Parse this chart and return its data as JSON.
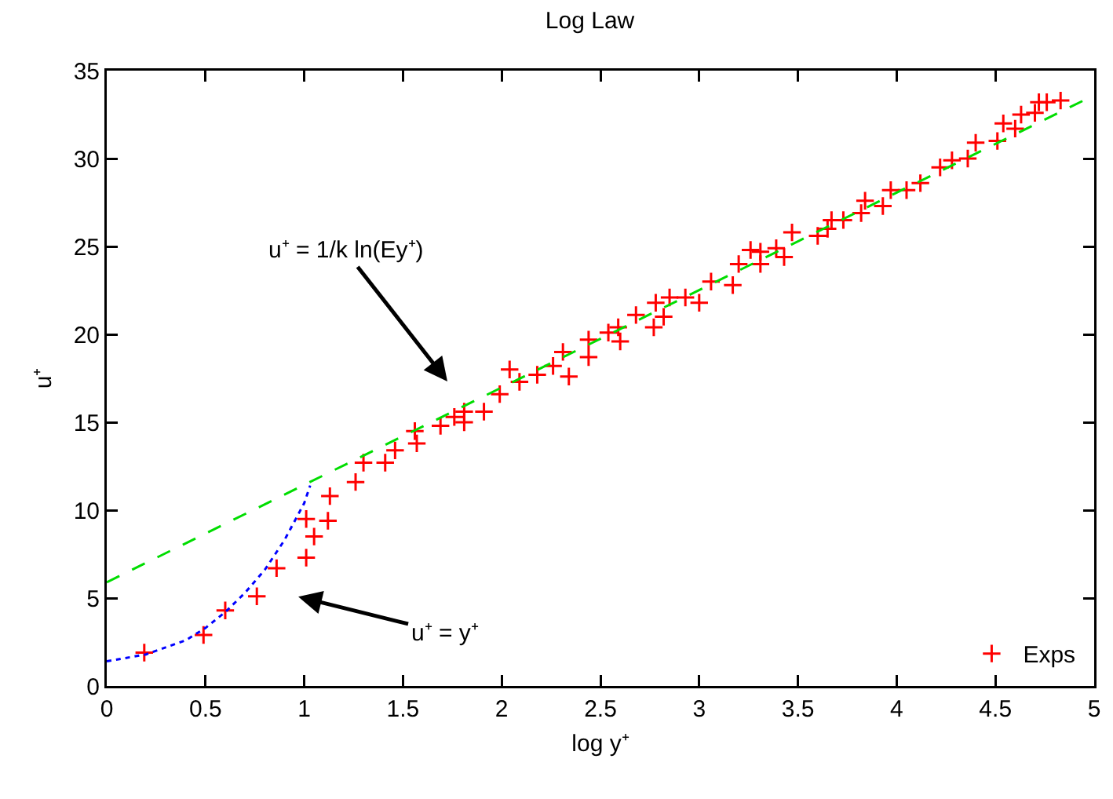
{
  "chart_data": {
    "type": "scatter",
    "title": "Log Law",
    "xlabel": "log y⁺",
    "ylabel": "u⁺",
    "xlim": [
      0,
      5
    ],
    "xticks": [
      0,
      0.5,
      1,
      1.5,
      2,
      2.5,
      3,
      3.5,
      4,
      4.5,
      5
    ],
    "ylim": [
      0,
      35
    ],
    "yticks": [
      0,
      5,
      10,
      15,
      20,
      25,
      30,
      35
    ],
    "grid": false,
    "legend": "bottom right",
    "annotations": [
      "u⁺ = 1/k ln(Ey⁺)",
      "u⁺ = y⁺"
    ],
    "series": [
      {
        "name": "Exps",
        "marker": "cross",
        "color": "#ff0000",
        "x": [
          0.19,
          0.49,
          0.6,
          0.76,
          0.86,
          1.01,
          1.01,
          1.05,
          1.12,
          1.13,
          1.26,
          1.3,
          1.41,
          1.46,
          1.56,
          1.57,
          1.69,
          1.76,
          1.81,
          1.81,
          1.91,
          1.99,
          2.04,
          2.09,
          2.18,
          2.26,
          2.31,
          2.34,
          2.44,
          2.44,
          2.54,
          2.59,
          2.6,
          2.68,
          2.77,
          2.78,
          2.82,
          2.85,
          2.93,
          3.0,
          3.06,
          3.17,
          3.2,
          3.26,
          3.31,
          3.31,
          3.39,
          3.43,
          3.47,
          3.6,
          3.65,
          3.67,
          3.73,
          3.82,
          3.84,
          3.93,
          3.97,
          4.05,
          4.12,
          4.22,
          4.28,
          4.36,
          4.4,
          4.51,
          4.54,
          4.6,
          4.63,
          4.7,
          4.72,
          4.76,
          4.83
        ],
        "values": [
          1.9,
          2.9,
          4.3,
          5.1,
          6.7,
          9.5,
          7.3,
          8.5,
          9.4,
          10.8,
          11.6,
          12.7,
          12.7,
          13.4,
          14.5,
          13.8,
          14.8,
          15.3,
          15.6,
          15.0,
          15.6,
          16.6,
          18.0,
          17.3,
          17.7,
          18.2,
          19.0,
          17.6,
          19.7,
          18.7,
          20.1,
          20.4,
          19.6,
          21.1,
          20.4,
          21.8,
          21.0,
          22.1,
          22.1,
          21.8,
          23.0,
          22.8,
          24.0,
          24.8,
          24.7,
          24.0,
          24.9,
          24.4,
          25.8,
          25.6,
          26.0,
          26.5,
          26.5,
          26.9,
          27.6,
          27.3,
          28.2,
          28.2,
          28.6,
          29.5,
          29.9,
          30.0,
          30.9,
          31.0,
          32.0,
          31.7,
          32.5,
          32.6,
          33.2,
          33.2,
          33.3
        ]
      },
      {
        "type": "line",
        "line_style": "dashed",
        "color": "#00dd00",
        "x": [
          0,
          5
        ],
        "values": [
          5.9,
          33.6
        ]
      },
      {
        "type": "line",
        "line_style": "dotted",
        "color": "#0000ff",
        "x": [
          0,
          0.2,
          0.4,
          0.5,
          0.6,
          0.7,
          0.8,
          0.9,
          1.0,
          1.03
        ],
        "values": [
          1.4,
          1.8,
          2.6,
          3.3,
          4.2,
          5.3,
          6.6,
          8.3,
          10.4,
          11.4
        ]
      }
    ]
  }
}
